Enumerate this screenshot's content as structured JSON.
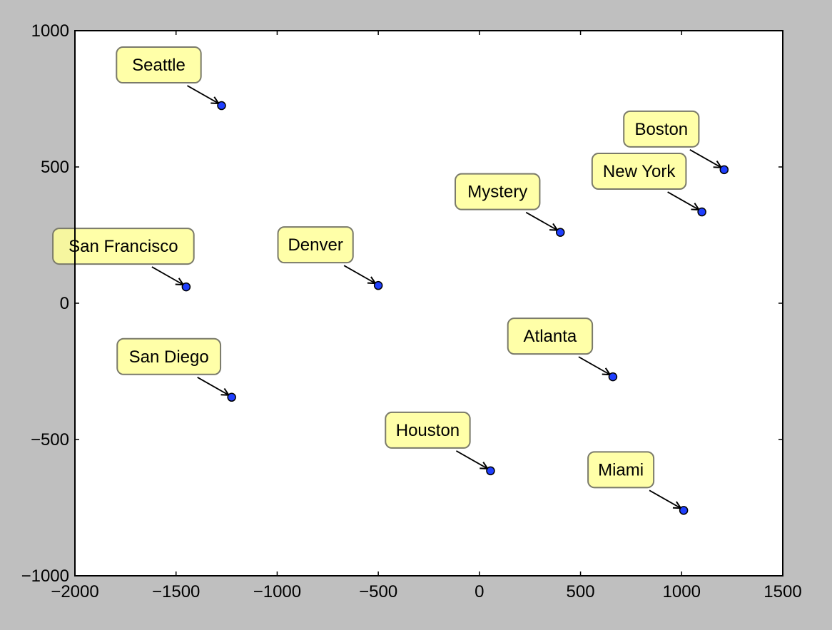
{
  "figure": {
    "background": "#bfbfbf",
    "plot_background": "#ffffff"
  },
  "chart_data": {
    "type": "scatter",
    "title": "",
    "xlabel": "",
    "ylabel": "",
    "xlim": [
      -2000,
      1500
    ],
    "ylim": [
      -1000,
      1000
    ],
    "xticks": [
      -2000,
      -1500,
      -1000,
      -500,
      0,
      500,
      1000,
      1500
    ],
    "yticks": [
      -1000,
      -500,
      0,
      500,
      1000
    ],
    "xtick_labels": [
      "−2000",
      "−1500",
      "−1000",
      "−500",
      "0",
      "500",
      "1000",
      "1500"
    ],
    "ytick_labels": [
      "−1000",
      "−500",
      "0",
      "500",
      "1000"
    ],
    "grid": false,
    "marker_color": "#1f3fff",
    "label_box_color": "#ffff99",
    "points": [
      {
        "label": "Seattle",
        "x": -1275,
        "y": 725
      },
      {
        "label": "San Francisco",
        "x": -1450,
        "y": 60
      },
      {
        "label": "San Diego",
        "x": -1225,
        "y": -345
      },
      {
        "label": "Denver",
        "x": -500,
        "y": 65
      },
      {
        "label": "Houston",
        "x": 55,
        "y": -615
      },
      {
        "label": "Atlanta",
        "x": 660,
        "y": -270
      },
      {
        "label": "Miami",
        "x": 1010,
        "y": -760
      },
      {
        "label": "Mystery",
        "x": 400,
        "y": 260
      },
      {
        "label": "New York",
        "x": 1100,
        "y": 335
      },
      {
        "label": "Boston",
        "x": 1210,
        "y": 490
      }
    ]
  }
}
